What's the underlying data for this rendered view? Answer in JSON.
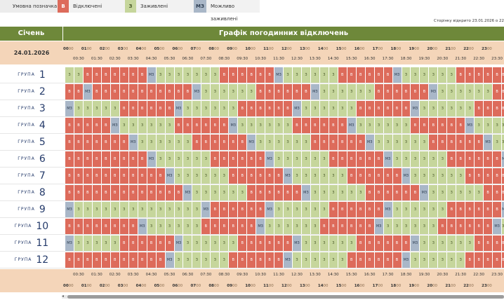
{
  "legend": {
    "title": "Умовна позначка",
    "items": [
      {
        "code": "В",
        "label": "Відключені",
        "color": "#dd6b5b"
      },
      {
        "code": "З",
        "label": "Заживлені",
        "color": "#c6d69c"
      },
      {
        "code": "МЗ",
        "label": "Можливо заживлені",
        "color": "#a9b7c8"
      }
    ]
  },
  "opened_text": "Сторінку відкрито 23.01.2026 о 22",
  "header": {
    "month": "Січень",
    "title": "Графік погодинних відключень"
  },
  "date": "24.01.2026",
  "hours": [
    "00",
    "01",
    "02",
    "03",
    "04",
    "05",
    "06",
    "07",
    "08",
    "09",
    "10",
    "11",
    "12",
    "13",
    "14",
    "15",
    "16",
    "17",
    "18",
    "19",
    "20",
    "21",
    "22",
    "23"
  ],
  "halfhours": [
    "00:30",
    "01:30",
    "02:30",
    "03:30",
    "04:30",
    "05:30",
    "06:30",
    "07:30",
    "08:30",
    "09:30",
    "10:30",
    "11:30",
    "12:30",
    "13:30",
    "14:30",
    "15:30",
    "16:30",
    "17:30",
    "18:30",
    "19:30",
    "20:30",
    "21:30",
    "22:30",
    "23:30"
  ],
  "mm": "00",
  "group_word": "ГРУПА",
  "groups": [
    {
      "num": "1",
      "cells": "ZZBBBBBBBMZZZZZZZBBBBBBMZZZZZZBBBBBBMZZZZZZBBBBBBMZZ"
    },
    {
      "num": "2",
      "cells": "BBMBBBBBBBBBBBMZZZZZZBBBBBBMZZZZZZBBBBBBMZZZZZZBBBBMZ"
    },
    {
      "num": "3",
      "cells": "MZZZZZBBBBBBMZZZZZZBBBBBBMZZZZZZBBBBBBMZZZZZZBBBBBBMZ"
    },
    {
      "num": "4",
      "cells": "BBBBBMZZZZZZBBBBBBMZZZZZZBBBBBBMZZZZZZBBBBBBMZZZZZZBB"
    },
    {
      "num": "5",
      "cells": "BBBBBBBMZZZZZZBBBBBBMZZZZZZBBBBBBMZZZZZZBBBBBBMZZZZZZ"
    },
    {
      "num": "6",
      "cells": "BBBBBBBBBMZZZZZZBBBBBBMZZZZZZBBBBBBMZZZZZZBBBBBBMZZZZ"
    },
    {
      "num": "7",
      "cells": "BBBBBBBBBBBMZZZZZZBBBBBBMZZZZZZBBBBBBMZZZZZZBBBBBBMZZ"
    },
    {
      "num": "8",
      "cells": "BBBBBBBBBBBBBMZZZZZZBBBBBBMZZZZZZBBBBBBMZZZZZZBBBBBBM"
    },
    {
      "num": "9",
      "cells": "MZZZZZZZZZZZZZZMBBBBBBMZZZZZZBBBBBBMZZZZZZBBBBBBMZZZZ"
    },
    {
      "num": "10",
      "cells": "BBBBBBBBMZZZZZZBBBBBBMZZZZZZBBBBBBMZZZZZZBBBBBBMZZZZZ"
    },
    {
      "num": "11",
      "cells": "MZZZZZBBBBBBMZZZZZZBBBBBBMZZZZZZBBBBBBMZZZZZZBBBBBBMZ"
    },
    {
      "num": "12",
      "cells": "BBBBBBBBBBBMZZZZZZBBBBBBMZZZZZZBBBBBBMZZZZZZBBBBBBMZZ"
    }
  ],
  "cell_labels": {
    "B": "В",
    "Z": "З",
    "M": "МЗ"
  }
}
